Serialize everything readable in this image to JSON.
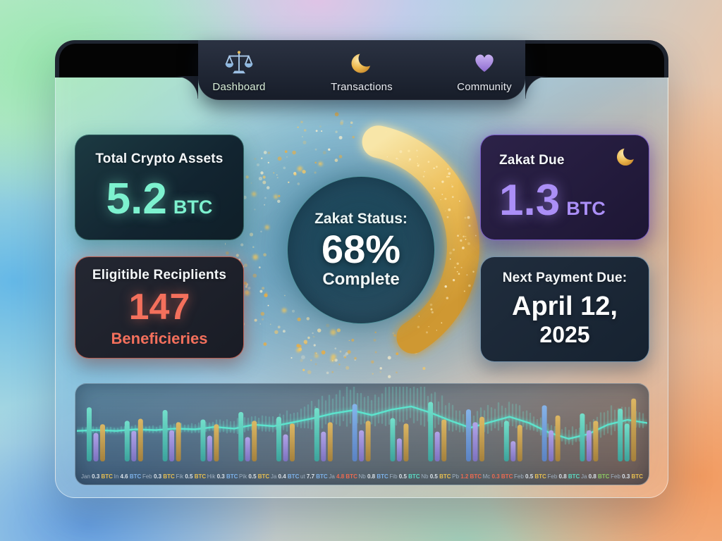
{
  "nav": {
    "items": [
      {
        "label": "Dashboard",
        "icon": "scales-icon"
      },
      {
        "label": "Transactions",
        "icon": "crescent-moon-icon"
      },
      {
        "label": "Community",
        "icon": "heart-icon"
      }
    ]
  },
  "cards": {
    "total_assets": {
      "title": "Total Crypto Assets",
      "value": "5.2",
      "unit": "BTC"
    },
    "recipients": {
      "title": "Eligitible Reciplients",
      "value": "147",
      "unit": "Beneficieries"
    },
    "zakat_due": {
      "title": "Zakat Due",
      "value": "1.3",
      "unit": "BTC",
      "icon": "crescent-moon-icon"
    },
    "next_payment": {
      "title": "Next Payment Due:",
      "date_line1": "April 12,",
      "date_line2": "2025"
    }
  },
  "status": {
    "label": "Zakat Status:",
    "percent": "68%",
    "sublabel": "Complete"
  },
  "colors": {
    "mint": "#7df2cf",
    "coral": "#f4705c",
    "lavender": "#ab8ff7",
    "gold": "#e9bb55",
    "white_text": "#f4f7f9",
    "teal_bar": "#74e4ce",
    "purple_bar": "#b6a6ee",
    "blue_bar": "#86b6ee",
    "gold_bar": "#e2ba62",
    "wave": "#5ce9d1",
    "label_gray": "#9fb0c0",
    "label_gold": "#e9c050",
    "label_blue": "#7db2ea",
    "label_teal": "#5adcc4",
    "label_red": "#ee6a50",
    "label_green": "#8cca62",
    "label_white": "#dbe3ea"
  },
  "chart_data": {
    "type": "bar",
    "unit": "BTC",
    "note": "monthly BTC amounts, grouped bars (teal/purple/gold) with audio-style waveform overlay",
    "groups": [
      [
        {
          "color": "teal",
          "h": 0.8
        },
        {
          "color": "purple",
          "h": 0.42
        },
        {
          "color": "gold",
          "h": 0.55
        }
      ],
      [
        {
          "color": "teal",
          "h": 0.6
        },
        {
          "color": "purple",
          "h": 0.45
        },
        {
          "color": "gold",
          "h": 0.63
        }
      ],
      [
        {
          "color": "teal",
          "h": 0.76
        },
        {
          "color": "purple",
          "h": 0.46
        },
        {
          "color": "gold",
          "h": 0.58
        }
      ],
      [
        {
          "color": "teal",
          "h": 0.62
        },
        {
          "color": "purple",
          "h": 0.38
        },
        {
          "color": "gold",
          "h": 0.55
        }
      ],
      [
        {
          "color": "teal",
          "h": 0.73
        },
        {
          "color": "purple",
          "h": 0.36
        },
        {
          "color": "gold",
          "h": 0.6
        }
      ],
      [
        {
          "color": "teal",
          "h": 0.66
        },
        {
          "color": "purple",
          "h": 0.4
        },
        {
          "color": "gold",
          "h": 0.56
        }
      ],
      [
        {
          "color": "teal",
          "h": 0.79
        },
        {
          "color": "purple",
          "h": 0.44
        },
        {
          "color": "gold",
          "h": 0.58
        }
      ],
      [
        {
          "color": "blue",
          "h": 0.85
        },
        {
          "color": "purple",
          "h": 0.46
        },
        {
          "color": "gold",
          "h": 0.6
        }
      ],
      [
        {
          "color": "teal",
          "h": 0.64
        },
        {
          "color": "purple",
          "h": 0.34
        },
        {
          "color": "gold",
          "h": 0.56
        }
      ],
      [
        {
          "color": "teal",
          "h": 0.88
        },
        {
          "color": "purple",
          "h": 0.44
        },
        {
          "color": "gold",
          "h": 0.62
        }
      ],
      [
        {
          "color": "blue",
          "h": 0.77
        },
        {
          "color": "purple",
          "h": 0.58
        },
        {
          "color": "gold",
          "h": 0.66
        }
      ],
      [
        {
          "color": "teal",
          "h": 0.6
        },
        {
          "color": "purple",
          "h": 0.3
        },
        {
          "color": "gold",
          "h": 0.54
        }
      ],
      [
        {
          "color": "blue",
          "h": 0.83
        },
        {
          "color": "purple",
          "h": 0.46
        },
        {
          "color": "gold",
          "h": 0.68
        }
      ],
      [
        {
          "color": "teal",
          "h": 0.71
        },
        {
          "color": "purple",
          "h": 0.46
        },
        {
          "color": "gold",
          "h": 0.6
        }
      ],
      [
        {
          "color": "teal",
          "h": 0.78
        },
        {
          "color": "teal",
          "h": 0.56
        },
        {
          "color": "gold",
          "h": 0.93
        }
      ]
    ],
    "labels": [
      {
        "month": "Jan",
        "value": "0.3",
        "unit": "BTC",
        "color": "gold"
      },
      {
        "month": "In",
        "value": "4.6",
        "unit": "BTC",
        "color": "blue"
      },
      {
        "month": "Feb",
        "value": "0.3",
        "unit": "BTC",
        "color": "gold"
      },
      {
        "month": "Fik",
        "value": "0.5",
        "unit": "BTC",
        "color": "gold"
      },
      {
        "month": "Hik",
        "value": "0.3",
        "unit": "BTC",
        "color": "blue"
      },
      {
        "month": "Pik",
        "value": "0.5",
        "unit": "BTC",
        "color": "gold"
      },
      {
        "month": "Ja",
        "value": "0.4",
        "unit": "BTC",
        "color": "blue"
      },
      {
        "month": "ut",
        "value": "7.7",
        "unit": "BTC",
        "color": "blue"
      },
      {
        "month": "Ja",
        "value": "4.8",
        "unit": "BTC",
        "color": "red"
      },
      {
        "month": "Nb",
        "value": "0.8",
        "unit": "BTC",
        "color": "blue"
      },
      {
        "month": "Fib",
        "value": "0.5",
        "unit": "BTC",
        "color": "teal"
      },
      {
        "month": "Nb",
        "value": "0.5",
        "unit": "BTC",
        "color": "gold"
      },
      {
        "month": "Pb",
        "value": "1.2",
        "unit": "BTC",
        "color": "red"
      },
      {
        "month": "Mc",
        "value": "0.3",
        "unit": "BTC",
        "color": "red"
      },
      {
        "month": "Feb",
        "value": "0.5",
        "unit": "BTC",
        "color": "gold"
      },
      {
        "month": "Feb",
        "value": "0.8",
        "unit": "BTC",
        "color": "teal"
      },
      {
        "month": "Ja",
        "value": "0.8",
        "unit": "BTC",
        "color": "green"
      },
      {
        "month": "Feb",
        "value": "0.3",
        "unit": "BTC",
        "color": "gold"
      }
    ],
    "waveform": {
      "centers": [
        0.56,
        0.55,
        0.56,
        0.54,
        0.55,
        0.53,
        0.54,
        0.51,
        0.53,
        0.48,
        0.5,
        0.45,
        0.4,
        0.34,
        0.3,
        0.36,
        0.29,
        0.25,
        0.33,
        0.43,
        0.52,
        0.45,
        0.38,
        0.46,
        0.58,
        0.66,
        0.6,
        0.48,
        0.42,
        0.46
      ],
      "amps": [
        0.1,
        0.12,
        0.1,
        0.16,
        0.13,
        0.22,
        0.18,
        0.27,
        0.32,
        0.38,
        0.3,
        0.46,
        0.58,
        0.72,
        0.82,
        0.66,
        0.88,
        0.97,
        0.8,
        0.6,
        0.5,
        0.62,
        0.52,
        0.42,
        0.36,
        0.32,
        0.46,
        0.62,
        0.5,
        0.36
      ]
    }
  }
}
